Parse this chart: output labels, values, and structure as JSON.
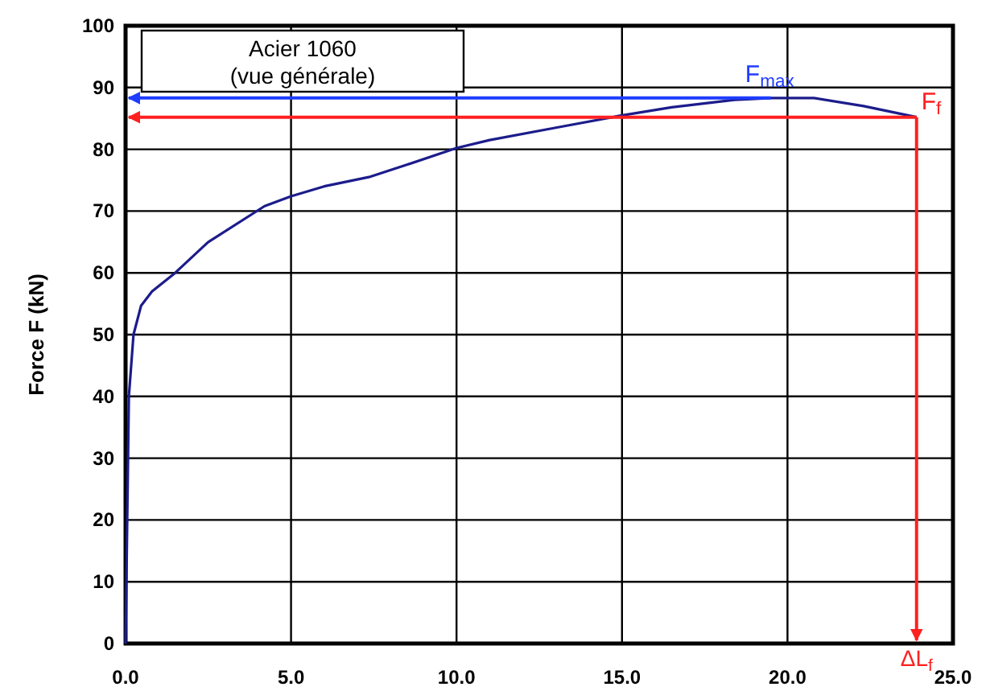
{
  "chart_data": {
    "type": "line",
    "title": "Acier 1060",
    "subtitle": "(vue générale)",
    "ylabel": "Force F  (kN)",
    "x": [
      0,
      0.05,
      0.1,
      0.24,
      0.47,
      0.8,
      1.5,
      2.5,
      4.2,
      5,
      6,
      7.35,
      8.5,
      10,
      11,
      13,
      14.9,
      16.5,
      18.4,
      19.5,
      20.8,
      22.3,
      23.9
    ],
    "series": [
      {
        "color": "#1c1c8c",
        "values": [
          0,
          20,
          40,
          50,
          54.7,
          57,
          60,
          65,
          70.8,
          72.4,
          74,
          75.5,
          77.5,
          80.2,
          81.5,
          83.5,
          85.4,
          86.8,
          88,
          88.3,
          88.3,
          87,
          85.2
        ]
      }
    ],
    "xlim": [
      0,
      25
    ],
    "ylim": [
      0,
      100
    ],
    "xticks": [
      {
        "value": 0,
        "label": "0.0"
      },
      {
        "value": 5,
        "label": "5.0"
      },
      {
        "value": 10,
        "label": "10.0"
      },
      {
        "value": 15,
        "label": "15.0"
      },
      {
        "value": 20,
        "label": "20.0"
      },
      {
        "value": 25,
        "label": "25.0"
      }
    ],
    "yticks": [
      0,
      10,
      20,
      30,
      40,
      50,
      60,
      70,
      80,
      90,
      100
    ],
    "grid": true,
    "marker": "none",
    "line_style": "solid",
    "ref_lines": [
      {
        "axis": "y",
        "value": 88.3,
        "label": "F$_{max}$",
        "color": "#1f3cff"
      },
      {
        "axis": "y",
        "value": 85.2,
        "label": "F$_{f}$",
        "color": "#ff2020"
      },
      {
        "axis": "x",
        "value": 23.9,
        "label": "ΔL$_{f}$",
        "color": "#ff2020"
      }
    ]
  }
}
